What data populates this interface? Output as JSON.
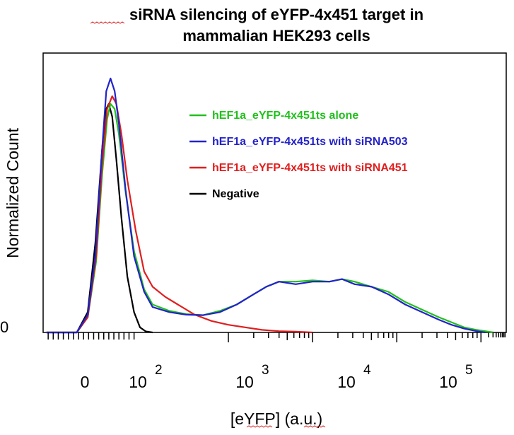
{
  "chart_data": {
    "type": "line",
    "title_line1": "siRNA silencing of eYFP-4x451 target in",
    "title_line2": "mammalian HEK293 cells",
    "xlabel": "[eYFP] (a.u.)",
    "ylabel": "Normalized Count",
    "x_scale": "biexponential",
    "xlim": [
      -0.2,
      5.3
    ],
    "ylim": [
      0,
      1.1
    ],
    "grid": false,
    "legend_position": "top-right",
    "y_tick_label": "0",
    "x_tick_labels": [
      {
        "base": "0",
        "exp": "",
        "value": 0
      },
      {
        "base": "10",
        "exp": "2",
        "value": 2
      },
      {
        "base": "10",
        "exp": "3",
        "value": 3
      },
      {
        "base": "10",
        "exp": "4",
        "value": 4
      },
      {
        "base": "10",
        "exp": "5",
        "value": 5
      }
    ],
    "series": [
      {
        "name": "hEF1a_eYFP-4x451ts alone",
        "color": "#22c01e",
        "points": [
          [
            -0.16,
            0
          ],
          [
            0,
            0
          ],
          [
            0.2,
            0
          ],
          [
            0.33,
            0.06
          ],
          [
            0.43,
            0.28
          ],
          [
            0.5,
            0.62
          ],
          [
            0.56,
            0.84
          ],
          [
            0.6,
            0.9
          ],
          [
            0.65,
            0.88
          ],
          [
            0.7,
            0.78
          ],
          [
            0.78,
            0.55
          ],
          [
            0.88,
            0.32
          ],
          [
            1.0,
            0.17
          ],
          [
            1.1,
            0.11
          ],
          [
            1.3,
            0.085
          ],
          [
            1.5,
            0.072
          ],
          [
            1.7,
            0.068
          ],
          [
            1.9,
            0.085
          ],
          [
            2.1,
            0.11
          ],
          [
            2.3,
            0.15
          ],
          [
            2.45,
            0.18
          ],
          [
            2.6,
            0.2
          ],
          [
            2.8,
            0.2
          ],
          [
            3.0,
            0.205
          ],
          [
            3.2,
            0.2
          ],
          [
            3.35,
            0.21
          ],
          [
            3.5,
            0.2
          ],
          [
            3.7,
            0.18
          ],
          [
            3.9,
            0.16
          ],
          [
            4.1,
            0.12
          ],
          [
            4.3,
            0.09
          ],
          [
            4.5,
            0.06
          ],
          [
            4.65,
            0.04
          ],
          [
            4.8,
            0.02
          ],
          [
            4.95,
            0.01
          ],
          [
            5.05,
            0.005
          ],
          [
            5.15,
            0
          ]
        ]
      },
      {
        "name": "hEF1a_eYFP-4x451ts  with siRNA503",
        "color": "#2323c8",
        "points": [
          [
            -0.16,
            0
          ],
          [
            0,
            0
          ],
          [
            0.2,
            0
          ],
          [
            0.33,
            0.07
          ],
          [
            0.42,
            0.3
          ],
          [
            0.5,
            0.72
          ],
          [
            0.55,
            0.95
          ],
          [
            0.6,
            1.0
          ],
          [
            0.65,
            0.95
          ],
          [
            0.7,
            0.82
          ],
          [
            0.78,
            0.56
          ],
          [
            0.88,
            0.3
          ],
          [
            1.0,
            0.16
          ],
          [
            1.1,
            0.1
          ],
          [
            1.3,
            0.08
          ],
          [
            1.5,
            0.07
          ],
          [
            1.7,
            0.068
          ],
          [
            1.9,
            0.08
          ],
          [
            2.1,
            0.11
          ],
          [
            2.3,
            0.15
          ],
          [
            2.45,
            0.18
          ],
          [
            2.6,
            0.2
          ],
          [
            2.8,
            0.19
          ],
          [
            3.0,
            0.2
          ],
          [
            3.2,
            0.2
          ],
          [
            3.35,
            0.21
          ],
          [
            3.5,
            0.19
          ],
          [
            3.7,
            0.18
          ],
          [
            3.9,
            0.15
          ],
          [
            4.1,
            0.11
          ],
          [
            4.3,
            0.08
          ],
          [
            4.5,
            0.05
          ],
          [
            4.65,
            0.03
          ],
          [
            4.8,
            0.015
          ],
          [
            4.95,
            0.005
          ],
          [
            5.05,
            0
          ]
        ]
      },
      {
        "name": "hEF1a_eYFP-4x451ts  with siRNA451",
        "color": "#e01e1e",
        "points": [
          [
            -0.16,
            0
          ],
          [
            0,
            0
          ],
          [
            0.2,
            0
          ],
          [
            0.33,
            0.06
          ],
          [
            0.43,
            0.3
          ],
          [
            0.5,
            0.66
          ],
          [
            0.56,
            0.88
          ],
          [
            0.62,
            0.93
          ],
          [
            0.67,
            0.9
          ],
          [
            0.73,
            0.78
          ],
          [
            0.8,
            0.6
          ],
          [
            0.9,
            0.4
          ],
          [
            1.0,
            0.24
          ],
          [
            1.1,
            0.18
          ],
          [
            1.25,
            0.14
          ],
          [
            1.4,
            0.11
          ],
          [
            1.6,
            0.07
          ],
          [
            1.8,
            0.045
          ],
          [
            2.0,
            0.03
          ],
          [
            2.2,
            0.02
          ],
          [
            2.4,
            0.01
          ],
          [
            2.6,
            0.005
          ],
          [
            2.8,
            0.003
          ],
          [
            3.0,
            0
          ]
        ]
      },
      {
        "name": "Negative",
        "color": "#000000",
        "points": [
          [
            -0.16,
            0
          ],
          [
            0,
            0
          ],
          [
            0.2,
            0
          ],
          [
            0.33,
            0.08
          ],
          [
            0.42,
            0.35
          ],
          [
            0.5,
            0.72
          ],
          [
            0.55,
            0.88
          ],
          [
            0.58,
            0.9
          ],
          [
            0.62,
            0.85
          ],
          [
            0.67,
            0.68
          ],
          [
            0.73,
            0.45
          ],
          [
            0.8,
            0.22
          ],
          [
            0.88,
            0.08
          ],
          [
            0.95,
            0.02
          ],
          [
            1.02,
            0.004
          ],
          [
            1.1,
            0
          ]
        ]
      }
    ]
  }
}
